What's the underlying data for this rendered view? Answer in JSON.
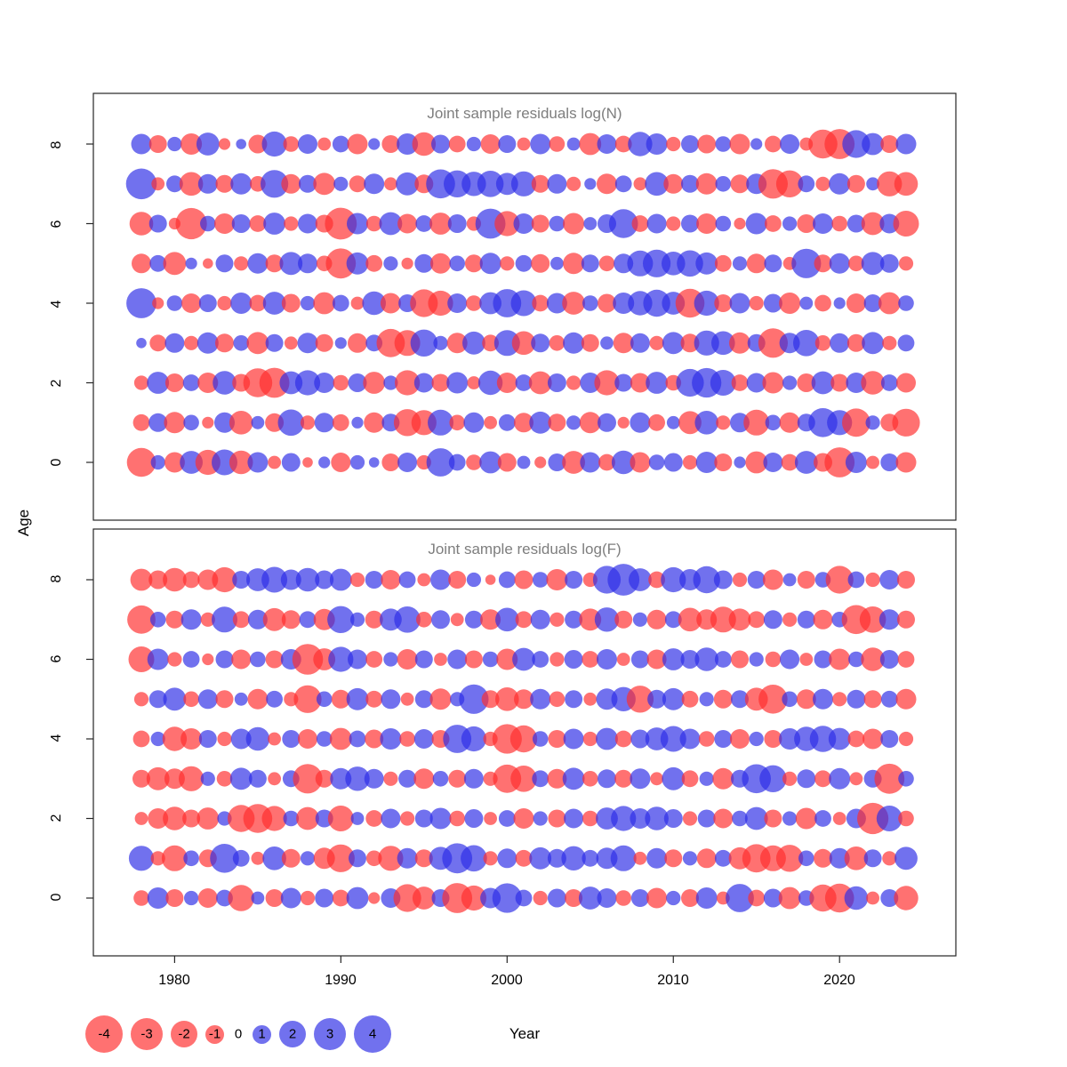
{
  "figure": {
    "ylabel": "Age",
    "xlabel": "Year"
  },
  "axes": {
    "x_tick_labels": [
      "1980",
      "1990",
      "2000",
      "2010",
      "2020"
    ],
    "y_tick_labels": [
      "0",
      "2",
      "4",
      "6",
      "8"
    ]
  },
  "legend": {
    "items": [
      {
        "label": "-4",
        "value": -4
      },
      {
        "label": "-3",
        "value": -3
      },
      {
        "label": "-2",
        "value": -2
      },
      {
        "label": "-1",
        "value": -1
      },
      {
        "label": "0",
        "value": 0
      },
      {
        "label": "1",
        "value": 1
      },
      {
        "label": "2",
        "value": 2
      },
      {
        "label": "3",
        "value": 3
      },
      {
        "label": "4",
        "value": 4
      }
    ]
  },
  "colors": {
    "negative": "#ff2e2e",
    "positive": "#2e2ee6"
  },
  "chart_data": {
    "type": "bubble",
    "title": "Joint sample residuals",
    "xlabel": "Year",
    "ylabel": "Age",
    "xlim": [
      1978,
      2024
    ],
    "ages": [
      0,
      1,
      2,
      3,
      4,
      5,
      6,
      7,
      8
    ],
    "value_range": [
      -4,
      4
    ],
    "x": [
      1978,
      1979,
      1980,
      1981,
      1982,
      1983,
      1984,
      1985,
      1986,
      1987,
      1988,
      1989,
      1990,
      1991,
      1992,
      1993,
      1994,
      1995,
      1996,
      1997,
      1998,
      1999,
      2000,
      2001,
      2002,
      2003,
      2004,
      2005,
      2006,
      2007,
      2008,
      2009,
      2010,
      2011,
      2012,
      2013,
      2014,
      2015,
      2016,
      2017,
      2018,
      2019,
      2020,
      2021,
      2022,
      2023,
      2024
    ],
    "panels": [
      {
        "title": "Joint sample residuals log(N)",
        "series_by_age": [
          [
            -2.4,
            0.6,
            -1.2,
            1.5,
            -1.8,
            1.9,
            -1.6,
            1.2,
            -0.5,
            1.0,
            -0.3,
            0.4,
            -1.1,
            0.6,
            0.3,
            -0.9,
            1.1,
            -0.6,
            2.3,
            0.8,
            -0.7,
            1.4,
            -1.0,
            0.5,
            -0.4,
            0.9,
            -1.5,
            1.2,
            -0.8,
            1.6,
            -1.2,
            0.7,
            1.0,
            -0.6,
            1.3,
            -0.9,
            0.4,
            -1.4,
            1.1,
            -0.8,
            1.5,
            -1.0,
            -2.6,
            1.3,
            -0.5,
            0.9,
            -1.2
          ],
          [
            -0.8,
            1.0,
            -1.3,
            0.7,
            -0.4,
            1.2,
            -1.6,
            0.5,
            -1.0,
            2.0,
            -0.6,
            1.1,
            -0.8,
            0.4,
            -1.2,
            0.9,
            -2.1,
            -1.8,
            1.9,
            -0.7,
            1.2,
            -0.5,
            0.8,
            -1.1,
            1.4,
            -0.9,
            0.6,
            -1.3,
            1.0,
            -0.4,
            1.2,
            -0.8,
            0.5,
            -1.5,
            1.6,
            -0.6,
            1.1,
            -1.9,
            0.7,
            -1.2,
            0.9,
            2.4,
            1.8,
            -2.3,
            0.6,
            -0.9,
            -2.2
          ],
          [
            -0.6,
            1.4,
            -1.0,
            0.8,
            -1.2,
            1.6,
            -0.9,
            -2.4,
            -2.6,
            1.5,
            1.8,
            1.2,
            -0.7,
            1.0,
            -1.4,
            0.6,
            -1.8,
            1.1,
            -0.9,
            1.3,
            -0.5,
            1.7,
            -1.2,
            0.8,
            -1.5,
            1.0,
            -0.6,
            1.2,
            -1.8,
            0.9,
            -1.1,
            1.4,
            -0.7,
            2.2,
            2.5,
            1.9,
            -0.8,
            1.1,
            -1.3,
            0.6,
            -1.0,
            1.5,
            -0.9,
            1.2,
            -1.6,
            0.8,
            -1.1
          ],
          [
            0.3,
            -0.8,
            1.1,
            -0.6,
            1.3,
            -1.0,
            0.7,
            -1.4,
            0.9,
            -0.5,
            1.2,
            -0.9,
            0.4,
            -1.1,
            0.8,
            -2.3,
            -1.9,
            2.1,
            0.6,
            -1.2,
            1.5,
            -0.8,
            1.9,
            -1.6,
            1.0,
            -0.7,
            1.3,
            -0.9,
            0.5,
            -1.2,
            1.1,
            -0.6,
            1.4,
            -1.0,
            1.8,
            1.6,
            -1.3,
            0.9,
            -2.5,
            1.2,
            2.0,
            -0.7,
            1.1,
            -0.9,
            1.4,
            -0.6,
            0.8
          ],
          [
            2.6,
            -0.4,
            0.7,
            -1.1,
            0.9,
            -0.6,
            1.3,
            -0.8,
            1.5,
            -1.0,
            0.6,
            -1.4,
            0.8,
            -0.5,
            1.6,
            -1.2,
            0.9,
            -2.2,
            -1.8,
            1.1,
            -0.7,
            1.4,
            2.3,
            1.9,
            -0.8,
            1.2,
            -1.5,
            0.7,
            -1.0,
            1.3,
            1.7,
            2.1,
            1.5,
            -2.4,
            1.8,
            -0.9,
            1.2,
            -0.6,
            1.0,
            -1.3,
            0.5,
            -0.8,
            0.4,
            -1.1,
            0.9,
            -1.4,
            0.7
          ],
          [
            -1.1,
            0.8,
            -1.5,
            0.4,
            -0.3,
            0.9,
            -0.6,
            1.2,
            -0.9,
            1.5,
            1.1,
            -0.7,
            -2.6,
            1.4,
            -0.8,
            0.6,
            -0.4,
            1.0,
            -1.2,
            0.7,
            -0.9,
            1.3,
            -0.6,
            0.8,
            -1.0,
            0.5,
            -1.3,
            0.9,
            -0.7,
            1.1,
            1.9,
            2.2,
            1.6,
            2.0,
            1.4,
            -0.8,
            0.6,
            -1.1,
            0.9,
            -0.5,
            2.5,
            -0.9,
            1.2,
            -0.7,
            1.5,
            1.0,
            -0.6
          ],
          [
            -1.6,
            0.9,
            -0.4,
            -2.8,
            0.7,
            -1.2,
            1.0,
            -0.8,
            1.4,
            -0.6,
            1.1,
            -0.9,
            -2.9,
            1.3,
            -0.7,
            1.5,
            -1.1,
            0.8,
            -1.4,
            1.0,
            -0.6,
            2.6,
            -1.8,
            1.2,
            -0.9,
            0.7,
            -1.3,
            0.5,
            1.0,
            2.4,
            -0.8,
            1.1,
            -0.6,
            0.9,
            -1.2,
            0.7,
            -0.4,
            1.3,
            -0.8,
            0.6,
            -1.0,
            1.2,
            -0.7,
            0.9,
            -1.5,
            1.1,
            -1.9
          ],
          [
            2.7,
            -0.5,
            0.8,
            -1.6,
            1.1,
            -0.9,
            1.3,
            -0.7,
            2.2,
            -1.1,
            0.9,
            -1.4,
            0.6,
            -0.8,
            1.2,
            -0.5,
            1.5,
            -1.0,
            2.4,
            2.1,
            1.7,
            2.0,
            1.4,
            1.8,
            -0.9,
            1.1,
            -0.6,
            0.4,
            -1.2,
            0.8,
            -0.5,
            1.6,
            -1.1,
            0.9,
            -1.3,
            0.7,
            -1.0,
            1.2,
            -2.5,
            -2.1,
            0.8,
            -0.6,
            1.3,
            -0.9,
            0.5,
            -1.8,
            -1.6
          ],
          [
            1.2,
            -0.9,
            0.6,
            -1.3,
            1.5,
            -0.4,
            0.3,
            -1.0,
            1.8,
            -0.7,
            1.1,
            -0.5,
            0.8,
            -1.2,
            0.4,
            -0.9,
            1.3,
            -1.6,
            1.0,
            -0.8,
            0.6,
            -1.1,
            0.9,
            -0.5,
            1.2,
            -0.7,
            0.5,
            -1.4,
            1.1,
            -0.8,
            1.7,
            1.3,
            -0.6,
            0.9,
            -1.0,
            0.7,
            -1.2,
            0.4,
            -0.8,
            1.1,
            -0.5,
            -2.4,
            -2.6,
            2.2,
            1.4,
            -0.9,
            1.2
          ]
        ]
      },
      {
        "title": "Joint sample residuals log(F)",
        "series_by_age": [
          [
            -0.7,
            1.3,
            -0.9,
            0.6,
            -1.1,
            0.8,
            -2.0,
            0.5,
            -0.9,
            1.2,
            -0.6,
            1.0,
            -0.8,
            1.4,
            -0.4,
            1.1,
            -2.2,
            -1.5,
            0.9,
            -2.6,
            -1.8,
            1.2,
            2.5,
            0.8,
            -0.6,
            1.0,
            -0.9,
            1.5,
            1.1,
            -0.7,
            0.9,
            -1.2,
            0.6,
            -0.9,
            1.3,
            -0.5,
            2.3,
            -0.8,
            1.0,
            -1.4,
            0.7,
            -2.1,
            -2.4,
            1.6,
            -0.5,
            0.9,
            -1.7
          ],
          [
            1.8,
            -0.6,
            -1.9,
            0.7,
            -0.9,
            2.4,
            0.8,
            -0.5,
            1.6,
            -1.0,
            0.6,
            -1.3,
            -2.2,
            0.9,
            -0.7,
            -1.8,
            1.2,
            -0.9,
            1.5,
            2.6,
            2.0,
            -0.6,
            1.1,
            -0.8,
            1.4,
            1.0,
            1.7,
            0.8,
            1.3,
            1.9,
            -0.5,
            1.2,
            -0.9,
            0.6,
            -1.1,
            0.8,
            -1.4,
            -2.3,
            -1.9,
            -2.1,
            0.7,
            -1.0,
            1.2,
            -1.6,
            0.9,
            -0.6,
            1.5
          ],
          [
            -0.5,
            -1.2,
            -1.6,
            -0.9,
            -1.4,
            0.6,
            -2.1,
            -2.4,
            -1.8,
            0.7,
            -1.5,
            0.9,
            -1.9,
            0.5,
            -0.8,
            1.1,
            -0.6,
            0.9,
            1.3,
            -0.7,
            1.0,
            -0.5,
            0.8,
            -1.2,
            0.6,
            -0.9,
            1.1,
            -0.7,
            1.4,
            1.8,
            1.2,
            1.6,
            1.0,
            -0.6,
            0.9,
            -1.1,
            0.7,
            1.5,
            -0.9,
            0.6,
            -1.3,
            0.8,
            -0.5,
            1.1,
            -2.8,
            1.9,
            -0.7
          ],
          [
            -0.9,
            -1.5,
            -1.2,
            -1.8,
            0.6,
            -0.7,
            1.4,
            0.9,
            -0.5,
            0.8,
            -2.5,
            -0.9,
            1.3,
            1.7,
            1.1,
            -0.6,
            0.9,
            -1.2,
            0.7,
            -0.9,
            1.1,
            -0.6,
            -2.3,
            -2.0,
            0.8,
            -1.1,
            1.4,
            -0.7,
            1.0,
            -0.9,
            1.2,
            -0.5,
            1.5,
            -0.8,
            0.6,
            -1.3,
            0.9,
            2.4,
            2.1,
            -0.6,
            1.0,
            -0.8,
            1.3,
            -0.5,
            0.9,
            -2.6,
            0.7
          ],
          [
            -0.8,
            0.6,
            -1.7,
            -1.3,
            0.9,
            -0.6,
            1.2,
            1.6,
            -0.5,
            0.9,
            -1.1,
            0.7,
            -1.4,
            0.8,
            -1.0,
            1.3,
            -0.7,
            1.1,
            -0.9,
            2.3,
            1.8,
            -0.6,
            -2.5,
            -2.1,
            0.7,
            -0.9,
            1.2,
            -0.6,
            1.4,
            -0.8,
            1.0,
            1.5,
            1.9,
            1.2,
            -0.7,
            0.9,
            -1.1,
            0.6,
            -0.9,
            1.3,
            1.7,
            2.0,
            1.4,
            -0.8,
            -1.2,
            0.9,
            -0.6
          ],
          [
            -0.6,
            0.9,
            1.5,
            -0.7,
            1.1,
            -0.9,
            0.5,
            -1.2,
            0.8,
            -0.6,
            -2.2,
            0.7,
            -1.0,
            1.4,
            -0.8,
            1.1,
            -0.5,
            0.9,
            -1.3,
            0.6,
            2.5,
            -0.9,
            -1.6,
            -1.1,
            1.2,
            -0.7,
            0.9,
            -0.5,
            1.3,
            1.7,
            -2.1,
            1.0,
            1.4,
            -0.8,
            0.6,
            -1.0,
            0.9,
            -1.5,
            -2.4,
            0.7,
            -1.1,
            1.2,
            -0.6,
            1.0,
            -0.9,
            0.8,
            -1.2
          ],
          [
            -1.9,
            1.3,
            -0.6,
            0.8,
            -0.4,
            0.9,
            -1.1,
            0.7,
            -0.9,
            1.2,
            -2.7,
            -1.4,
            1.8,
            1.1,
            -0.8,
            0.6,
            -1.2,
            0.9,
            -0.5,
            1.1,
            -0.9,
            0.7,
            -1.3,
            1.5,
            0.8,
            -0.6,
            1.0,
            -0.8,
            1.2,
            -0.5,
            0.9,
            -1.1,
            1.4,
            1.0,
            1.6,
            0.8,
            -0.9,
            0.6,
            -0.7,
            1.1,
            -0.5,
            0.9,
            -1.3,
            0.7,
            -1.6,
            1.0,
            -0.8
          ],
          [
            -2.3,
            0.7,
            -0.9,
            1.2,
            -0.6,
            1.9,
            -0.8,
            1.1,
            -1.5,
            -1.0,
            0.8,
            -1.3,
            2.1,
            0.6,
            -0.9,
            1.4,
            2.0,
            -0.7,
            1.0,
            -0.5,
            0.9,
            -1.2,
            1.6,
            -0.8,
            1.1,
            -0.6,
            0.9,
            -1.4,
            1.7,
            -0.9,
            0.6,
            -1.1,
            0.8,
            -1.6,
            -1.2,
            -1.9,
            -1.4,
            -0.8,
            1.0,
            -0.6,
            0.9,
            -1.1,
            0.7,
            -2.4,
            -2.0,
            1.2,
            -0.9
          ],
          [
            -1.4,
            -1.0,
            -1.6,
            -0.8,
            -1.2,
            -1.8,
            0.9,
            1.5,
            1.9,
            1.2,
            1.6,
            1.0,
            1.4,
            -0.6,
            0.9,
            -1.1,
            0.8,
            -0.5,
            1.2,
            -0.9,
            0.6,
            -0.3,
            0.8,
            -1.0,
            0.7,
            -1.3,
            0.9,
            -0.6,
            2.2,
            2.9,
            1.5,
            -0.8,
            1.8,
            1.3,
            2.1,
            1.0,
            -0.6,
            0.9,
            -1.2,
            0.5,
            -0.9,
            0.7,
            -2.2,
            0.8,
            -0.6,
            1.1,
            -0.9
          ]
        ]
      }
    ]
  }
}
